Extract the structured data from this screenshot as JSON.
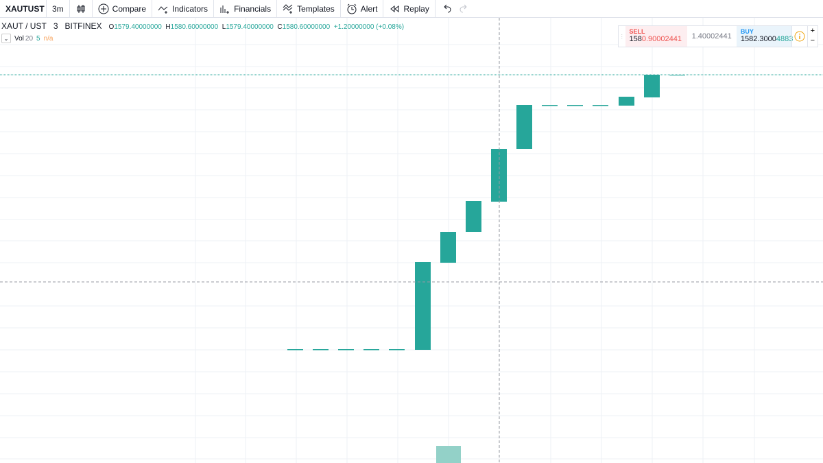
{
  "toolbar": {
    "symbol": "XAUTUST",
    "interval": "3m",
    "buttons": [
      "Compare",
      "Indicators",
      "Financials",
      "Templates",
      "Alert",
      "Replay"
    ]
  },
  "legend": {
    "pair": "XAUT / UST",
    "interval": "3",
    "exchange": "BITFINEX",
    "ohlc": [
      {
        "key": "O",
        "value": "1579.40000000"
      },
      {
        "key": "H",
        "value": "1580.60000000"
      },
      {
        "key": "L",
        "value": "1579.40000000"
      },
      {
        "key": "C",
        "value": "1580.60000000"
      }
    ],
    "change": "+1.20000000 (+0.08%)"
  },
  "volume": {
    "label": "Vol",
    "length": "20",
    "value": "5",
    "ma": "n/a"
  },
  "trade": {
    "sell_label": "SELL",
    "sell_main": "158",
    "sell_rest": "0.90002441",
    "spread": "1.40002441",
    "buy_label": "BUY",
    "buy_main": "1582.3000",
    "buy_rest": "4883",
    "plus": "+",
    "minus": "−"
  }
}
